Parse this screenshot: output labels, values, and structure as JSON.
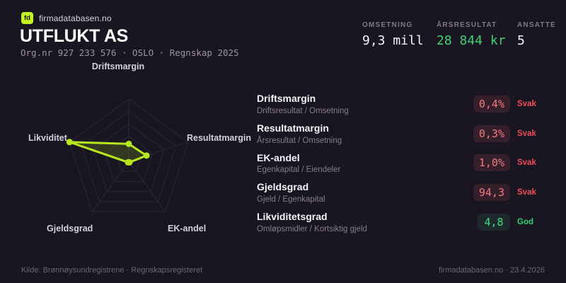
{
  "colors": {
    "background": "#1a1621",
    "accent_green": "#c4f420",
    "chart_line": "#b6e71e",
    "positive_green": "#3fd173",
    "negative_red": "#ef4d59",
    "muted_gray": "#837d8f"
  },
  "header": {
    "logo": "fd",
    "brand": "firmadatabasen.no",
    "title": "UTFLUKT AS",
    "subtitle": "Org.nr 927 233 576  ·  OSLO  ·  Regnskap 2025"
  },
  "stats": [
    {
      "label": "OMSETNING",
      "value": "9,3 mill",
      "tone": "plain"
    },
    {
      "label": "ÅRSRESULTAT",
      "value": "28 844 kr",
      "tone": "positive"
    },
    {
      "label": "ANSATTE",
      "value": "5",
      "tone": "plain"
    }
  ],
  "chart_data": {
    "type": "radar",
    "axes": [
      "Driftsmargin",
      "Resultatmargin",
      "EK-andel",
      "Gjeldsgrad",
      "Likviditet"
    ],
    "values": [
      0.28,
      0.3,
      0.02,
      0.02,
      1.0
    ],
    "max": 1,
    "rings": 5,
    "grid": true,
    "legend": "none",
    "note": "values are normalized axis scores 0-1 read from the plotted polygon"
  },
  "metrics": {
    "rows": [
      {
        "title": "Driftsmargin",
        "formula": "Driftsresultat / Omsetning",
        "value": "0,4%",
        "status": "Svak",
        "tone": "svak"
      },
      {
        "title": "Resultatmargin",
        "formula": "Årsresultat / Omsetning",
        "value": "0,3%",
        "status": "Svak",
        "tone": "svak"
      },
      {
        "title": "EK-andel",
        "formula": "Egenkapital / Eiendeler",
        "value": "1,0%",
        "status": "Svak",
        "tone": "svak"
      },
      {
        "title": "Gjeldsgrad",
        "formula": "Gjeld / Egenkapital",
        "value": "94,3",
        "status": "Svak",
        "tone": "svak"
      },
      {
        "title": "Likviditetsgrad",
        "formula": "Omløpsmidler / Kortsiktig gjeld",
        "value": "4,8",
        "status": "God",
        "tone": "god"
      }
    ]
  },
  "footer": {
    "source": "Kilde: Brønnøysundregistrene · Regnskapsregisteret",
    "brand_date": "firmadatabasen.no · 23.4.2026"
  }
}
